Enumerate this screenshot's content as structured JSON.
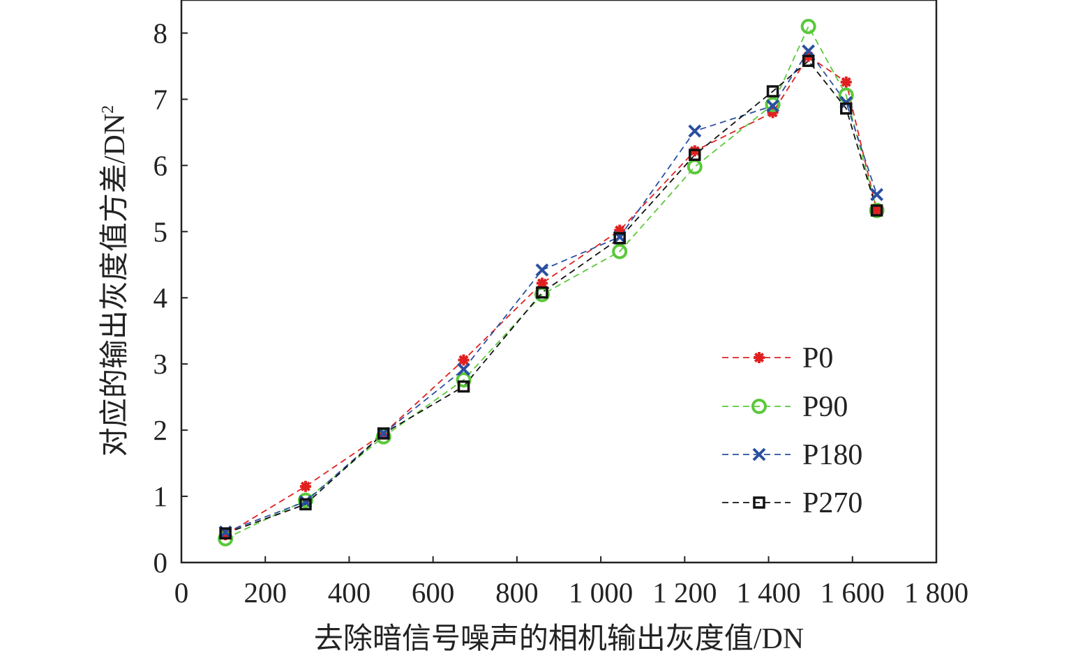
{
  "chart_data": {
    "type": "line",
    "title": "",
    "xlabel": "去除暗信号噪声的相机输出灰度值/DN",
    "ylabel": "对应的输出灰度值方差/DN",
    "ylabel_superscript": "2",
    "xlim": [
      0,
      1800
    ],
    "ylim": [
      0,
      8.5
    ],
    "xticks": [
      0,
      200,
      400,
      600,
      800,
      1000,
      1200,
      1400,
      1600,
      1800
    ],
    "xtick_labels": [
      "0",
      "200",
      "400",
      "600",
      "800",
      "1 000",
      "1 200",
      "1 400",
      "1 600",
      "1 800"
    ],
    "yticks": [
      0,
      1,
      2,
      3,
      4,
      5,
      6,
      7,
      8
    ],
    "ytick_labels": [
      "0",
      "1",
      "2",
      "3",
      "4",
      "5",
      "6",
      "7",
      "8"
    ],
    "legend_position": "lower-right",
    "series": [
      {
        "name": "P0",
        "color": "#e02020",
        "marker": "asterisk",
        "x": [
          105,
          296,
          482,
          673,
          860,
          1045,
          1224,
          1410,
          1495,
          1585,
          1658
        ],
        "y": [
          0.42,
          1.15,
          1.95,
          3.06,
          4.22,
          5.02,
          6.22,
          6.8,
          7.65,
          7.26,
          5.32
        ]
      },
      {
        "name": "P90",
        "color": "#5ac83a",
        "marker": "circle",
        "x": [
          105,
          296,
          482,
          673,
          860,
          1045,
          1224,
          1410,
          1495,
          1585,
          1658
        ],
        "y": [
          0.36,
          0.94,
          1.9,
          2.76,
          4.05,
          4.7,
          5.98,
          6.92,
          8.1,
          7.06,
          5.32
        ]
      },
      {
        "name": "P180",
        "color": "#2a4fa0",
        "marker": "x",
        "x": [
          105,
          296,
          482,
          673,
          860,
          1045,
          1224,
          1410,
          1495,
          1585,
          1658
        ],
        "y": [
          0.46,
          0.92,
          1.95,
          2.92,
          4.42,
          4.92,
          6.52,
          6.9,
          7.73,
          6.95,
          5.56
        ]
      },
      {
        "name": "P270",
        "color": "#111111",
        "marker": "square",
        "x": [
          105,
          296,
          482,
          673,
          860,
          1045,
          1224,
          1410,
          1495,
          1585,
          1658
        ],
        "y": [
          0.44,
          0.88,
          1.95,
          2.66,
          4.08,
          4.9,
          6.16,
          7.12,
          7.58,
          6.86,
          5.32
        ]
      }
    ]
  }
}
